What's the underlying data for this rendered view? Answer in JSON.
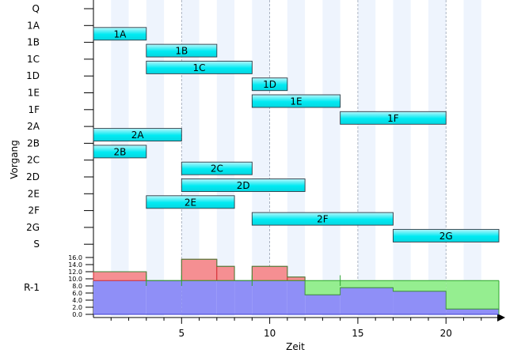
{
  "chart_data": {
    "type": "gantt",
    "xlabel": "Zeit",
    "ylabel": "Vorgang",
    "xlim": [
      0,
      23
    ],
    "x_ticks": [
      5,
      10,
      15,
      20
    ],
    "rows": [
      "Q",
      "1A",
      "1B",
      "1C",
      "1D",
      "1E",
      "1F",
      "2A",
      "2B",
      "2C",
      "2D",
      "2E",
      "2F",
      "2G",
      "S"
    ],
    "tasks": [
      {
        "name": "1A",
        "start": 0,
        "end": 3
      },
      {
        "name": "1B",
        "start": 3,
        "end": 7
      },
      {
        "name": "1C",
        "start": 3,
        "end": 9
      },
      {
        "name": "1D",
        "start": 9,
        "end": 11
      },
      {
        "name": "1E",
        "start": 9,
        "end": 14
      },
      {
        "name": "1F",
        "start": 14,
        "end": 20
      },
      {
        "name": "2A",
        "start": 0,
        "end": 5
      },
      {
        "name": "2B",
        "start": 0,
        "end": 3
      },
      {
        "name": "2C",
        "start": 5,
        "end": 9
      },
      {
        "name": "2D",
        "start": 5,
        "end": 12
      },
      {
        "name": "2E",
        "start": 3,
        "end": 8
      },
      {
        "name": "2F",
        "start": 9,
        "end": 17
      },
      {
        "name": "2G",
        "start": 17,
        "end": 23
      }
    ],
    "resource": {
      "label": "R-1",
      "capacity": 9.5,
      "y_ticks": [
        "0.0",
        "2.0",
        "4.0",
        "6.0",
        "8.0",
        "10.0",
        "12.0",
        "14.0",
        "16.0"
      ],
      "ylim": [
        0,
        16
      ],
      "usage": [
        {
          "start": 0,
          "end": 3,
          "value": 12
        },
        {
          "start": 3,
          "end": 5,
          "value": 9.5
        },
        {
          "start": 5,
          "end": 7,
          "value": 15.5
        },
        {
          "start": 7,
          "end": 8,
          "value": 13.5
        },
        {
          "start": 8,
          "end": 9,
          "value": 9.5
        },
        {
          "start": 9,
          "end": 11,
          "value": 13.5
        },
        {
          "start": 11,
          "end": 12,
          "value": 10.5
        },
        {
          "start": 12,
          "end": 14,
          "value": 5.5
        },
        {
          "start": 14,
          "end": 17,
          "value": 7.5
        },
        {
          "start": 17,
          "end": 20,
          "value": 6.5
        },
        {
          "start": 20,
          "end": 23,
          "value": 1.5
        }
      ]
    }
  }
}
